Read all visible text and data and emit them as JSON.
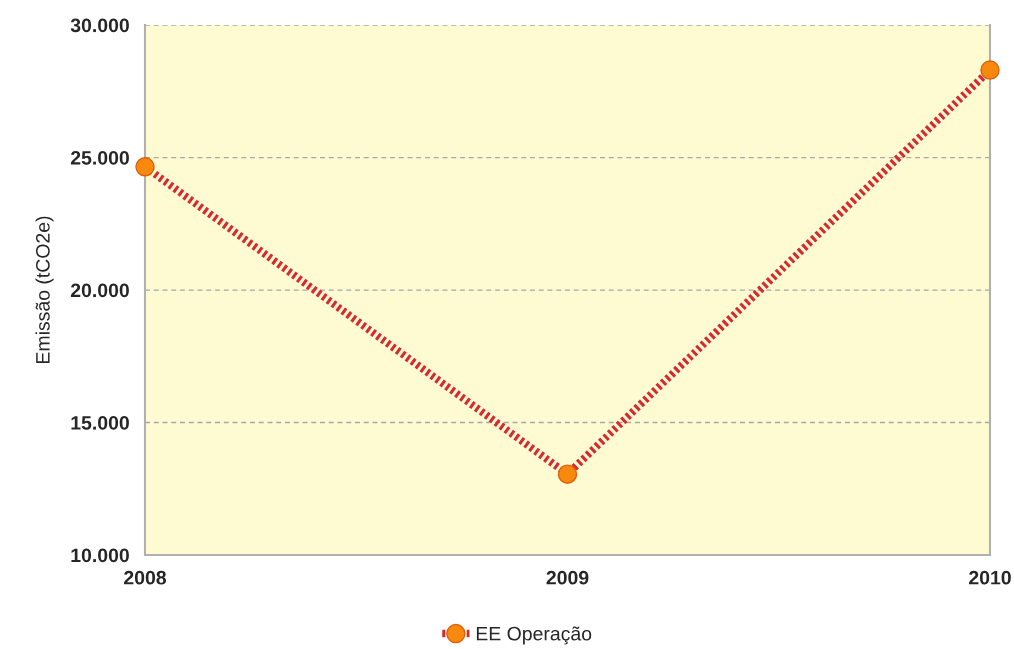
{
  "chart_data": {
    "type": "line",
    "ylabel": "Emissão (tCO2e)",
    "x": [
      2008,
      2009,
      2010
    ],
    "xlim": [
      2008,
      2010
    ],
    "xticks": [
      2008,
      2009,
      2010
    ],
    "ylim": [
      10000,
      30000
    ],
    "yticks": [
      {
        "value": 10000,
        "label": "10.000"
      },
      {
        "value": 15000,
        "label": "15.000"
      },
      {
        "value": 20000,
        "label": "20.000"
      },
      {
        "value": 25000,
        "label": "25.000"
      },
      {
        "value": 30000,
        "label": "30.000"
      }
    ],
    "series": [
      {
        "name": "EE Operação",
        "color": "#d42a30",
        "values": [
          24650,
          13050,
          28300
        ]
      }
    ],
    "marker": "circle",
    "line_style": "dotted",
    "grid": "y",
    "legend": "bottom"
  }
}
